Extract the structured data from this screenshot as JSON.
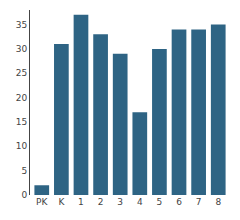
{
  "chart_data": {
    "type": "bar",
    "categories": [
      "PK",
      "K",
      "1",
      "2",
      "3",
      "4",
      "5",
      "6",
      "7",
      "8"
    ],
    "values": [
      2,
      31,
      37,
      33,
      29,
      17,
      30,
      34,
      34,
      35
    ],
    "color": "#2e6484",
    "ylim": [
      0,
      38
    ],
    "yticks": [
      0,
      5,
      10,
      15,
      20,
      25,
      30,
      35
    ],
    "grid": false
  }
}
